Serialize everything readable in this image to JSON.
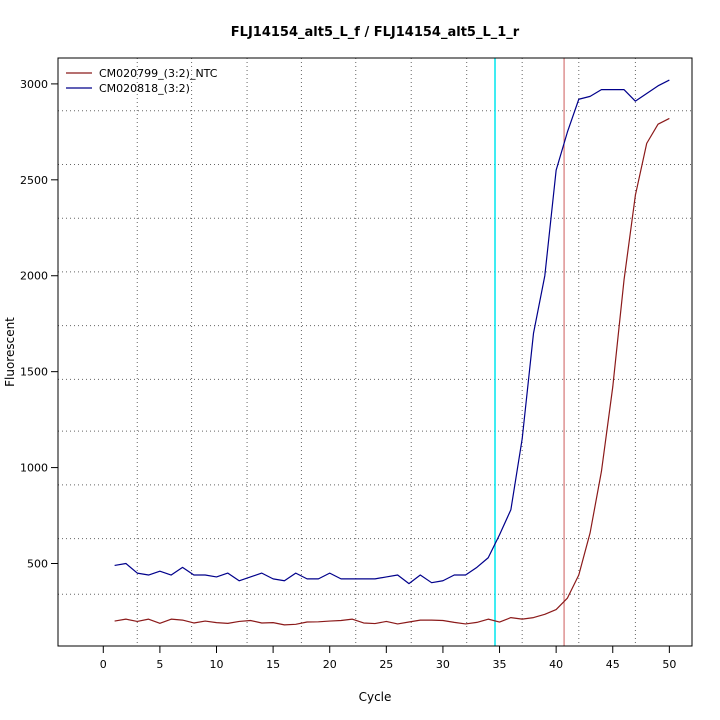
{
  "chart_data": {
    "type": "line",
    "title": "FLJ14154_alt5_L_f / FLJ14154_alt5_L_1_r",
    "xlabel": "Cycle",
    "ylabel": "Fluorescent",
    "xlim": [
      -4,
      52
    ],
    "ylim": [
      70,
      3135
    ],
    "x_ticks": [
      0,
      5,
      10,
      15,
      20,
      25,
      30,
      35,
      40,
      45,
      50
    ],
    "y_ticks": [
      500,
      1000,
      1500,
      2000,
      2500,
      3000
    ],
    "grid": "dotted",
    "vertical_grid_x": [
      3,
      7.8,
      12.7,
      17.5,
      22.3,
      27.2,
      32.1,
      37,
      42,
      47
    ],
    "horizontal_grid_y": [
      340,
      630,
      910,
      1190,
      1460,
      1740,
      2020,
      2300,
      2580,
      2860
    ],
    "legend_position": "top-left",
    "threshold_lines": [
      {
        "axis": "x",
        "value": 34.6,
        "color": "#00e5ee"
      },
      {
        "axis": "x",
        "value": 40.7,
        "color": "#cd5c5c"
      }
    ],
    "x": [
      1,
      2,
      3,
      4,
      5,
      6,
      7,
      8,
      9,
      10,
      11,
      12,
      13,
      14,
      15,
      16,
      17,
      18,
      19,
      20,
      21,
      22,
      23,
      24,
      25,
      26,
      27,
      28,
      29,
      30,
      31,
      32,
      33,
      34,
      35,
      36,
      37,
      38,
      39,
      40,
      41,
      42,
      43,
      44,
      45,
      46,
      47,
      48,
      49,
      50
    ],
    "series": [
      {
        "name": "CM020799_(3:2)_NTC",
        "color": "#8b1a1a",
        "values": [
          200,
          210,
          198,
          210,
          188,
          210,
          205,
          190,
          200,
          192,
          188,
          198,
          203,
          190,
          192,
          180,
          183,
          195,
          196,
          200,
          203,
          210,
          190,
          187,
          198,
          185,
          195,
          205,
          205,
          203,
          193,
          185,
          193,
          210,
          195,
          218,
          210,
          218,
          235,
          260,
          320,
          440,
          660,
          980,
          1420,
          1980,
          2420,
          2690,
          2790,
          2820
        ]
      },
      {
        "name": "CM020818_(3:2)",
        "color": "#00008b",
        "values": [
          490,
          500,
          450,
          440,
          460,
          440,
          480,
          440,
          440,
          430,
          450,
          410,
          430,
          450,
          420,
          410,
          450,
          420,
          420,
          450,
          420,
          420,
          420,
          420,
          430,
          440,
          395,
          440,
          400,
          410,
          440,
          440,
          480,
          530,
          650,
          780,
          1150,
          1700,
          2000,
          2550,
          2750,
          2920,
          2935,
          2970,
          2970,
          2970,
          2910,
          2950,
          2990,
          3020
        ]
      }
    ]
  }
}
